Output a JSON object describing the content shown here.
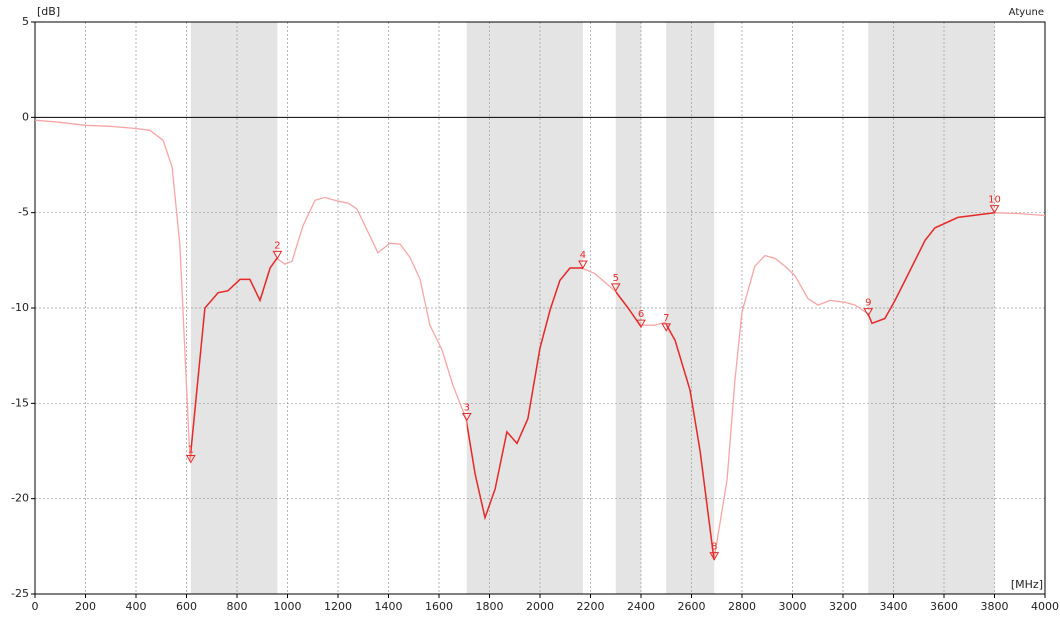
{
  "chart_data": {
    "type": "line",
    "title": "Atyune",
    "y_label": "[dB]",
    "x_label": "[MHz]",
    "xlim": [
      0,
      4000
    ],
    "ylim": [
      -25,
      5
    ],
    "xticks": [
      0,
      200,
      400,
      600,
      800,
      1000,
      1200,
      1400,
      1600,
      1800,
      2000,
      2200,
      2400,
      2600,
      2800,
      3000,
      3200,
      3400,
      3600,
      3800,
      4000
    ],
    "yticks": [
      -25,
      -20,
      -15,
      -10,
      -5,
      0,
      5
    ],
    "grid": true,
    "band_fill": "#e4e4e4",
    "bands": [
      [
        617,
        960
      ],
      [
        1710,
        2170
      ],
      [
        2300,
        2400
      ],
      [
        2500,
        2690
      ],
      [
        3300,
        3800
      ]
    ],
    "series": [
      {
        "color": "#f7a5a5",
        "band_color": "#e52a2a",
        "x": [
          0,
          99,
          198,
          297,
          396,
          455,
          507,
          543,
          574,
          614,
          673,
          725,
          764,
          812,
          851,
          891,
          931,
          958,
          990,
          1018,
          1061,
          1109,
          1149,
          1200,
          1240,
          1275,
          1358,
          1406,
          1446,
          1485,
          1525,
          1564,
          1612,
          1655,
          1707,
          1743,
          1782,
          1822,
          1869,
          1909,
          1952,
          2000,
          2040,
          2079,
          2119,
          2166,
          2218,
          2257,
          2297,
          2349,
          2396,
          2455,
          2495,
          2535,
          2594,
          2634,
          2689,
          2741,
          2772,
          2800,
          2851,
          2891,
          2931,
          2970,
          3010,
          3061,
          3101,
          3149,
          3208,
          3248,
          3299,
          3315,
          3366,
          3406,
          3446,
          3525,
          3564,
          3655,
          3802,
          3901,
          4000
        ],
        "values": [
          -0.15,
          -0.26,
          -0.42,
          -0.47,
          -0.58,
          -0.68,
          -1.2,
          -2.6,
          -6.7,
          -18.0,
          -10.0,
          -9.2,
          -9.1,
          -8.5,
          -8.5,
          -9.6,
          -7.9,
          -7.4,
          -7.7,
          -7.55,
          -5.7,
          -4.35,
          -4.2,
          -4.4,
          -4.5,
          -4.8,
          -7.1,
          -6.6,
          -6.65,
          -7.35,
          -8.5,
          -10.9,
          -12.2,
          -14.05,
          -15.8,
          -18.7,
          -21.0,
          -19.5,
          -16.5,
          -17.1,
          -15.8,
          -12.1,
          -10.1,
          -8.55,
          -7.9,
          -7.9,
          -8.2,
          -8.65,
          -9.1,
          -10.0,
          -10.9,
          -10.9,
          -10.75,
          -11.7,
          -14.3,
          -17.5,
          -23.2,
          -19.0,
          -13.8,
          -10.2,
          -7.8,
          -7.25,
          -7.4,
          -7.8,
          -8.3,
          -9.5,
          -9.85,
          -9.6,
          -9.7,
          -9.85,
          -10.3,
          -10.8,
          -10.55,
          -9.6,
          -8.55,
          -6.45,
          -5.8,
          -5.25,
          -5.0,
          -5.05,
          -5.15
        ]
      }
    ],
    "markers": [
      {
        "label": "1",
        "x": 617,
        "value": -18.1
      },
      {
        "label": "2",
        "x": 960,
        "value": -7.4
      },
      {
        "label": "3",
        "x": 1710,
        "value": -15.9
      },
      {
        "label": "4",
        "x": 2170,
        "value": -7.9
      },
      {
        "label": "5",
        "x": 2300,
        "value": -9.1
      },
      {
        "label": "6",
        "x": 2400,
        "value": -11.0
      },
      {
        "label": "7",
        "x": 2500,
        "value": -11.2
      },
      {
        "label": "8",
        "x": 2690,
        "value": -23.2
      },
      {
        "label": "9",
        "x": 3300,
        "value": -10.4
      },
      {
        "label": "10",
        "x": 3800,
        "value": -5.0
      }
    ]
  }
}
